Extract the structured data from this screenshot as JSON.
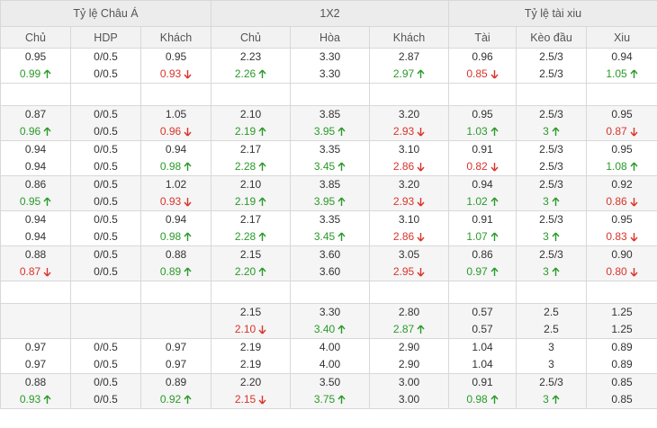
{
  "header": {
    "groups": [
      "Tỷ lệ Châu Á",
      "1X2",
      "Tỷ lệ tài xiu"
    ],
    "columns": [
      "Chủ",
      "HDP",
      "Khách",
      "Chủ",
      "Hòa",
      "Khách",
      "Tài",
      "Kèo đầu",
      "Xiu"
    ]
  },
  "colors": {
    "up": "#2a9a2a",
    "down": "#d9342b",
    "neutral": "#333333"
  },
  "rows": [
    {
      "kind": "pair",
      "alt": false,
      "lines": [
        [
          {
            "v": "0.95"
          },
          {
            "v": "0/0.5"
          },
          {
            "v": "0.95"
          },
          {
            "v": "2.23"
          },
          {
            "v": "3.30"
          },
          {
            "v": "2.87"
          },
          {
            "v": "0.96"
          },
          {
            "v": "2.5/3"
          },
          {
            "v": "0.94"
          }
        ],
        [
          {
            "v": "0.99",
            "d": "up"
          },
          {
            "v": "0/0.5"
          },
          {
            "v": "0.93",
            "d": "down"
          },
          {
            "v": "2.26",
            "d": "up"
          },
          {
            "v": "3.30"
          },
          {
            "v": "2.97",
            "d": "up"
          },
          {
            "v": "0.85",
            "d": "down"
          },
          {
            "v": "2.5/3"
          },
          {
            "v": "1.05",
            "d": "up"
          }
        ]
      ]
    },
    {
      "kind": "spacer"
    },
    {
      "kind": "pair",
      "alt": true,
      "lines": [
        [
          {
            "v": "0.87"
          },
          {
            "v": "0/0.5"
          },
          {
            "v": "1.05"
          },
          {
            "v": "2.10"
          },
          {
            "v": "3.85"
          },
          {
            "v": "3.20"
          },
          {
            "v": "0.95"
          },
          {
            "v": "2.5/3"
          },
          {
            "v": "0.95"
          }
        ],
        [
          {
            "v": "0.96",
            "d": "up"
          },
          {
            "v": "0/0.5"
          },
          {
            "v": "0.96",
            "d": "down"
          },
          {
            "v": "2.19",
            "d": "up"
          },
          {
            "v": "3.95",
            "d": "up"
          },
          {
            "v": "2.93",
            "d": "down"
          },
          {
            "v": "1.03",
            "d": "up"
          },
          {
            "v": "3",
            "d": "up"
          },
          {
            "v": "0.87",
            "d": "down"
          }
        ]
      ]
    },
    {
      "kind": "pair",
      "alt": false,
      "lines": [
        [
          {
            "v": "0.94"
          },
          {
            "v": "0/0.5"
          },
          {
            "v": "0.94"
          },
          {
            "v": "2.17"
          },
          {
            "v": "3.35"
          },
          {
            "v": "3.10"
          },
          {
            "v": "0.91"
          },
          {
            "v": "2.5/3"
          },
          {
            "v": "0.95"
          }
        ],
        [
          {
            "v": "0.94"
          },
          {
            "v": "0/0.5"
          },
          {
            "v": "0.98",
            "d": "up"
          },
          {
            "v": "2.28",
            "d": "up"
          },
          {
            "v": "3.45",
            "d": "up"
          },
          {
            "v": "2.86",
            "d": "down"
          },
          {
            "v": "0.82",
            "d": "down"
          },
          {
            "v": "2.5/3"
          },
          {
            "v": "1.08",
            "d": "up"
          }
        ]
      ]
    },
    {
      "kind": "pair",
      "alt": true,
      "lines": [
        [
          {
            "v": "0.86"
          },
          {
            "v": "0/0.5"
          },
          {
            "v": "1.02"
          },
          {
            "v": "2.10"
          },
          {
            "v": "3.85"
          },
          {
            "v": "3.20"
          },
          {
            "v": "0.94"
          },
          {
            "v": "2.5/3"
          },
          {
            "v": "0.92"
          }
        ],
        [
          {
            "v": "0.95",
            "d": "up"
          },
          {
            "v": "0/0.5"
          },
          {
            "v": "0.93",
            "d": "down"
          },
          {
            "v": "2.19",
            "d": "up"
          },
          {
            "v": "3.95",
            "d": "up"
          },
          {
            "v": "2.93",
            "d": "down"
          },
          {
            "v": "1.02",
            "d": "up"
          },
          {
            "v": "3",
            "d": "up"
          },
          {
            "v": "0.86",
            "d": "down"
          }
        ]
      ]
    },
    {
      "kind": "pair",
      "alt": false,
      "lines": [
        [
          {
            "v": "0.94"
          },
          {
            "v": "0/0.5"
          },
          {
            "v": "0.94"
          },
          {
            "v": "2.17"
          },
          {
            "v": "3.35"
          },
          {
            "v": "3.10"
          },
          {
            "v": "0.91"
          },
          {
            "v": "2.5/3"
          },
          {
            "v": "0.95"
          }
        ],
        [
          {
            "v": "0.94"
          },
          {
            "v": "0/0.5"
          },
          {
            "v": "0.98",
            "d": "up"
          },
          {
            "v": "2.28",
            "d": "up"
          },
          {
            "v": "3.45",
            "d": "up"
          },
          {
            "v": "2.86",
            "d": "down"
          },
          {
            "v": "1.07",
            "d": "up"
          },
          {
            "v": "3",
            "d": "up"
          },
          {
            "v": "0.83",
            "d": "down"
          }
        ]
      ]
    },
    {
      "kind": "pair",
      "alt": true,
      "lines": [
        [
          {
            "v": "0.88"
          },
          {
            "v": "0/0.5"
          },
          {
            "v": "0.88"
          },
          {
            "v": "2.15"
          },
          {
            "v": "3.60"
          },
          {
            "v": "3.05"
          },
          {
            "v": "0.86"
          },
          {
            "v": "2.5/3"
          },
          {
            "v": "0.90"
          }
        ],
        [
          {
            "v": "0.87",
            "d": "down"
          },
          {
            "v": "0/0.5"
          },
          {
            "v": "0.89",
            "d": "up"
          },
          {
            "v": "2.20",
            "d": "up"
          },
          {
            "v": "3.60"
          },
          {
            "v": "2.95",
            "d": "down"
          },
          {
            "v": "0.97",
            "d": "up"
          },
          {
            "v": "3",
            "d": "up"
          },
          {
            "v": "0.80",
            "d": "down"
          }
        ]
      ]
    },
    {
      "kind": "spacer"
    },
    {
      "kind": "pair",
      "alt": true,
      "lines": [
        [
          {
            "v": ""
          },
          {
            "v": ""
          },
          {
            "v": ""
          },
          {
            "v": "2.15"
          },
          {
            "v": "3.30"
          },
          {
            "v": "2.80"
          },
          {
            "v": "0.57"
          },
          {
            "v": "2.5"
          },
          {
            "v": "1.25"
          }
        ],
        [
          {
            "v": ""
          },
          {
            "v": ""
          },
          {
            "v": ""
          },
          {
            "v": "2.10",
            "d": "down"
          },
          {
            "v": "3.40",
            "d": "up"
          },
          {
            "v": "2.87",
            "d": "up"
          },
          {
            "v": "0.57"
          },
          {
            "v": "2.5"
          },
          {
            "v": "1.25"
          }
        ]
      ]
    },
    {
      "kind": "pair",
      "alt": false,
      "lines": [
        [
          {
            "v": "0.97"
          },
          {
            "v": "0/0.5"
          },
          {
            "v": "0.97"
          },
          {
            "v": "2.19"
          },
          {
            "v": "4.00"
          },
          {
            "v": "2.90"
          },
          {
            "v": "1.04"
          },
          {
            "v": "3"
          },
          {
            "v": "0.89"
          }
        ],
        [
          {
            "v": "0.97"
          },
          {
            "v": "0/0.5"
          },
          {
            "v": "0.97"
          },
          {
            "v": "2.19"
          },
          {
            "v": "4.00"
          },
          {
            "v": "2.90"
          },
          {
            "v": "1.04"
          },
          {
            "v": "3"
          },
          {
            "v": "0.89"
          }
        ]
      ]
    },
    {
      "kind": "pair",
      "alt": true,
      "lines": [
        [
          {
            "v": "0.88"
          },
          {
            "v": "0/0.5"
          },
          {
            "v": "0.89"
          },
          {
            "v": "2.20"
          },
          {
            "v": "3.50"
          },
          {
            "v": "3.00"
          },
          {
            "v": "0.91"
          },
          {
            "v": "2.5/3"
          },
          {
            "v": "0.85"
          }
        ],
        [
          {
            "v": "0.93",
            "d": "up"
          },
          {
            "v": "0/0.5"
          },
          {
            "v": "0.92",
            "d": "up"
          },
          {
            "v": "2.15",
            "d": "down"
          },
          {
            "v": "3.75",
            "d": "up"
          },
          {
            "v": "3.00"
          },
          {
            "v": "0.98",
            "d": "up"
          },
          {
            "v": "3",
            "d": "up"
          },
          {
            "v": "0.85"
          }
        ]
      ]
    }
  ]
}
